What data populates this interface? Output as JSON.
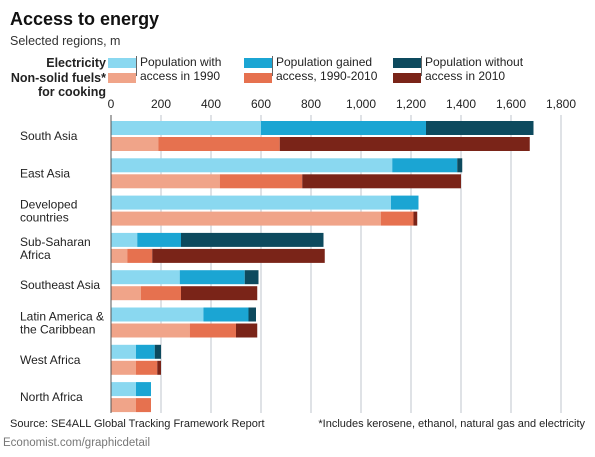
{
  "title": "Access to energy",
  "subtitle": "Selected regions, m",
  "legend": {
    "row1_label": "Electricity",
    "row2_label": "Non-solid fuels*",
    "row2_label_cont": "for cooking",
    "items": [
      {
        "line1": "Population with",
        "line2": "access in 1990",
        "color_elec": "#8ad8f0",
        "color_fuel": "#f0a489"
      },
      {
        "line1": "Population gained",
        "line2": "access, 1990-2010",
        "color_elec": "#1ba5d3",
        "color_fuel": "#e6714f"
      },
      {
        "line1": "Population without",
        "line2": "access in 2010",
        "color_elec": "#0d4a5e",
        "color_fuel": "#7a2418"
      }
    ]
  },
  "chart_data": {
    "type": "bar",
    "orientation": "horizontal",
    "stacked": true,
    "xlim": [
      0,
      1800
    ],
    "xticks": [
      "0",
      "200",
      "400",
      "600",
      "800",
      "1,000",
      "1,200",
      "1,400",
      "1,600",
      "1,800"
    ],
    "xtick_values": [
      0,
      200,
      400,
      600,
      800,
      1000,
      1200,
      1400,
      1600,
      1800
    ],
    "grid": true,
    "categories": [
      {
        "line1": "South Asia",
        "line2": ""
      },
      {
        "line1": "East Asia",
        "line2": ""
      },
      {
        "line1": "Developed",
        "line2": "countries"
      },
      {
        "line1": "Sub-Saharan",
        "line2": "Africa"
      },
      {
        "line1": "Southeast Asia",
        "line2": ""
      },
      {
        "line1": "Latin America &",
        "line2": "the Caribbean"
      },
      {
        "line1": "West Africa",
        "line2": ""
      },
      {
        "line1": "North Africa",
        "line2": ""
      }
    ],
    "electricity": [
      [
        600,
        660,
        430
      ],
      [
        1125,
        260,
        20
      ],
      [
        1120,
        110,
        0
      ],
      [
        105,
        175,
        570
      ],
      [
        275,
        260,
        55
      ],
      [
        370,
        180,
        30
      ],
      [
        100,
        75,
        25
      ],
      [
        100,
        60,
        0
      ]
    ],
    "fuels": [
      [
        190,
        485,
        1000
      ],
      [
        435,
        330,
        635
      ],
      [
        1080,
        130,
        15
      ],
      [
        65,
        100,
        690
      ],
      [
        120,
        160,
        305
      ],
      [
        315,
        185,
        85
      ],
      [
        100,
        85,
        15
      ],
      [
        100,
        60,
        0
      ]
    ]
  },
  "source": "Source: SE4ALL Global Tracking Framework Report",
  "footnote": "*Includes kerosene, ethanol, natural gas and electricity",
  "credit": "Economist.com/graphicdetail"
}
